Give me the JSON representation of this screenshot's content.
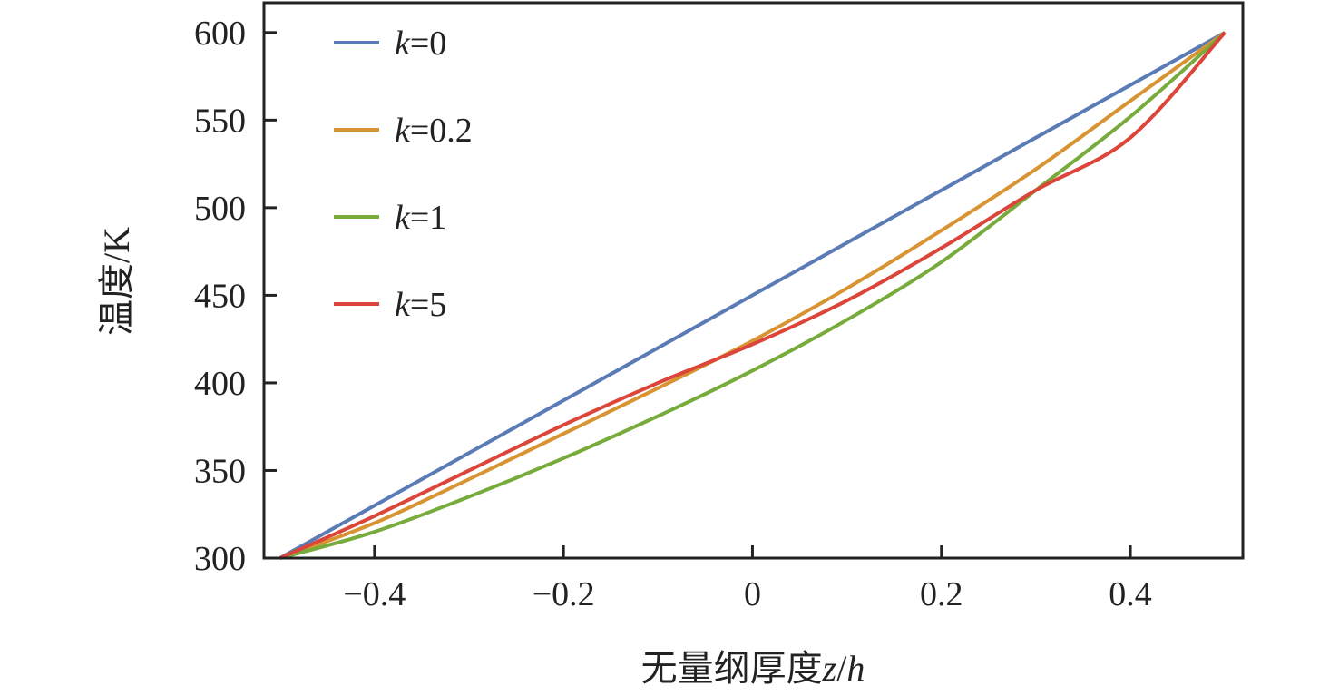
{
  "chart_data": {
    "type": "line",
    "title": "",
    "xlabel_prefix": "无量纲厚度",
    "xlabel_var1": "z",
    "xlabel_sep": "/",
    "xlabel_var2": "h",
    "ylabel": "温度/K",
    "xlim": [
      -0.517,
      0.519
    ],
    "ylim": [
      300,
      617
    ],
    "xticks": [
      -0.4,
      -0.2,
      0,
      0.2,
      0.4
    ],
    "xtick_labels": [
      "−0.4",
      "−0.2",
      "0",
      "0.2",
      "0.4"
    ],
    "yticks": [
      300,
      350,
      400,
      450,
      500,
      550,
      600
    ],
    "ytick_labels": [
      "300",
      "350",
      "400",
      "450",
      "500",
      "550",
      "600"
    ],
    "grid": false,
    "legend_placement": "top-left",
    "x": [
      -0.5,
      -0.4,
      -0.3,
      -0.2,
      -0.1,
      0,
      0.1,
      0.2,
      0.3,
      0.4,
      0.5
    ],
    "series": [
      {
        "name": "k=0",
        "var": "k",
        "eq": "=0",
        "color": "#5a7bb5",
        "values": [
          300,
          330,
          360,
          390,
          420,
          450,
          480,
          510,
          540,
          570,
          600
        ]
      },
      {
        "name": "k=0.2",
        "var": "k",
        "eq": "=0.2",
        "color": "#d89432",
        "values": [
          300,
          320,
          345,
          371,
          397,
          424,
          454,
          487,
          522,
          561,
          600
        ]
      },
      {
        "name": "k=1",
        "var": "k",
        "eq": "=1",
        "color": "#77ab3c",
        "values": [
          300,
          315,
          335,
          357,
          381,
          407,
          436,
          469,
          510,
          552,
          600
        ]
      },
      {
        "name": "k=5",
        "var": "k",
        "eq": "=5",
        "color": "#dc4539",
        "values": [
          300,
          324,
          350,
          376,
          400,
          422,
          447,
          477,
          510,
          540,
          600
        ]
      }
    ]
  }
}
